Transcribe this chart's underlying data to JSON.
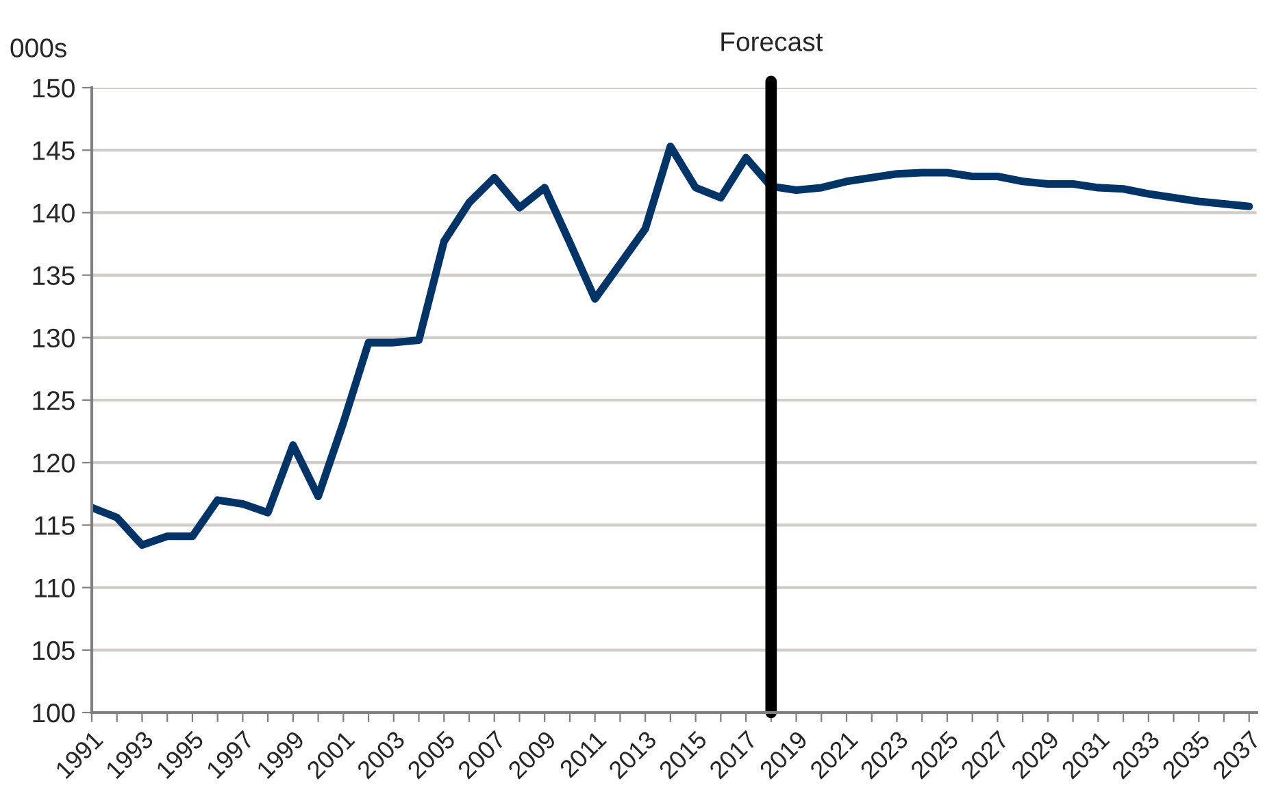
{
  "chart_data": {
    "type": "line",
    "ylabel": "000s",
    "x": [
      1991,
      1992,
      1993,
      1994,
      1995,
      1996,
      1997,
      1998,
      1999,
      2000,
      2001,
      2002,
      2003,
      2004,
      2005,
      2006,
      2007,
      2008,
      2009,
      2010,
      2011,
      2012,
      2013,
      2014,
      2015,
      2016,
      2017,
      2018,
      2019,
      2020,
      2021,
      2022,
      2023,
      2024,
      2025,
      2026,
      2027,
      2028,
      2029,
      2030,
      2031,
      2032,
      2033,
      2034,
      2035,
      2036,
      2037
    ],
    "series": [
      {
        "color": "#003366",
        "values": [
          116.4,
          115.6,
          113.4,
          114.1,
          114.1,
          117.0,
          116.7,
          116.0,
          121.4,
          117.3,
          123.2,
          129.6,
          129.6,
          129.8,
          137.7,
          140.8,
          142.8,
          140.4,
          142.0,
          137.6,
          133.1,
          135.9,
          138.7,
          145.3,
          142.0,
          141.2,
          144.4,
          142.1,
          141.8,
          142.0,
          142.5,
          142.8,
          143.1,
          143.2,
          143.2,
          142.9,
          142.9,
          142.5,
          142.3,
          142.3,
          142.0,
          141.9,
          141.5,
          141.2,
          140.9,
          140.7,
          140.5
        ]
      }
    ],
    "xlim": [
      1991,
      2037.3
    ],
    "xticks": [
      1991,
      {
        "value": 1992,
        "label": null
      },
      1993,
      {
        "value": 1994,
        "label": null
      },
      1995,
      {
        "value": 1996,
        "label": null
      },
      1997,
      {
        "value": 1998,
        "label": null
      },
      1999,
      {
        "value": 2000,
        "label": null
      },
      2001,
      {
        "value": 2002,
        "label": null
      },
      2003,
      {
        "value": 2004,
        "label": null
      },
      2005,
      {
        "value": 2006,
        "label": null
      },
      2007,
      {
        "value": 2008,
        "label": null
      },
      2009,
      {
        "value": 2010,
        "label": null
      },
      2011,
      {
        "value": 2012,
        "label": null
      },
      2013,
      {
        "value": 2014,
        "label": null
      },
      2015,
      {
        "value": 2016,
        "label": null
      },
      2017,
      {
        "value": 2018,
        "label": null
      },
      2019,
      {
        "value": 2020,
        "label": null
      },
      2021,
      {
        "value": 2022,
        "label": null
      },
      2023,
      {
        "value": 2024,
        "label": null
      },
      2025,
      {
        "value": 2026,
        "label": null
      },
      2027,
      {
        "value": 2028,
        "label": null
      },
      2029,
      {
        "value": 2030,
        "label": null
      },
      2031,
      {
        "value": 2032,
        "label": null
      },
      2033,
      {
        "value": 2034,
        "label": null
      },
      2035,
      {
        "value": 2036,
        "label": null
      },
      2037
    ],
    "ylim": [
      100,
      150
    ],
    "yticks": [
      100,
      105,
      110,
      115,
      120,
      125,
      130,
      135,
      140,
      145,
      150
    ],
    "grid": "y",
    "legend": false,
    "marker": "none",
    "line_style": "solid",
    "ref_lines": [
      {
        "axis": "x",
        "value": 2018,
        "label": "Forecast",
        "color": "#000000"
      }
    ]
  }
}
